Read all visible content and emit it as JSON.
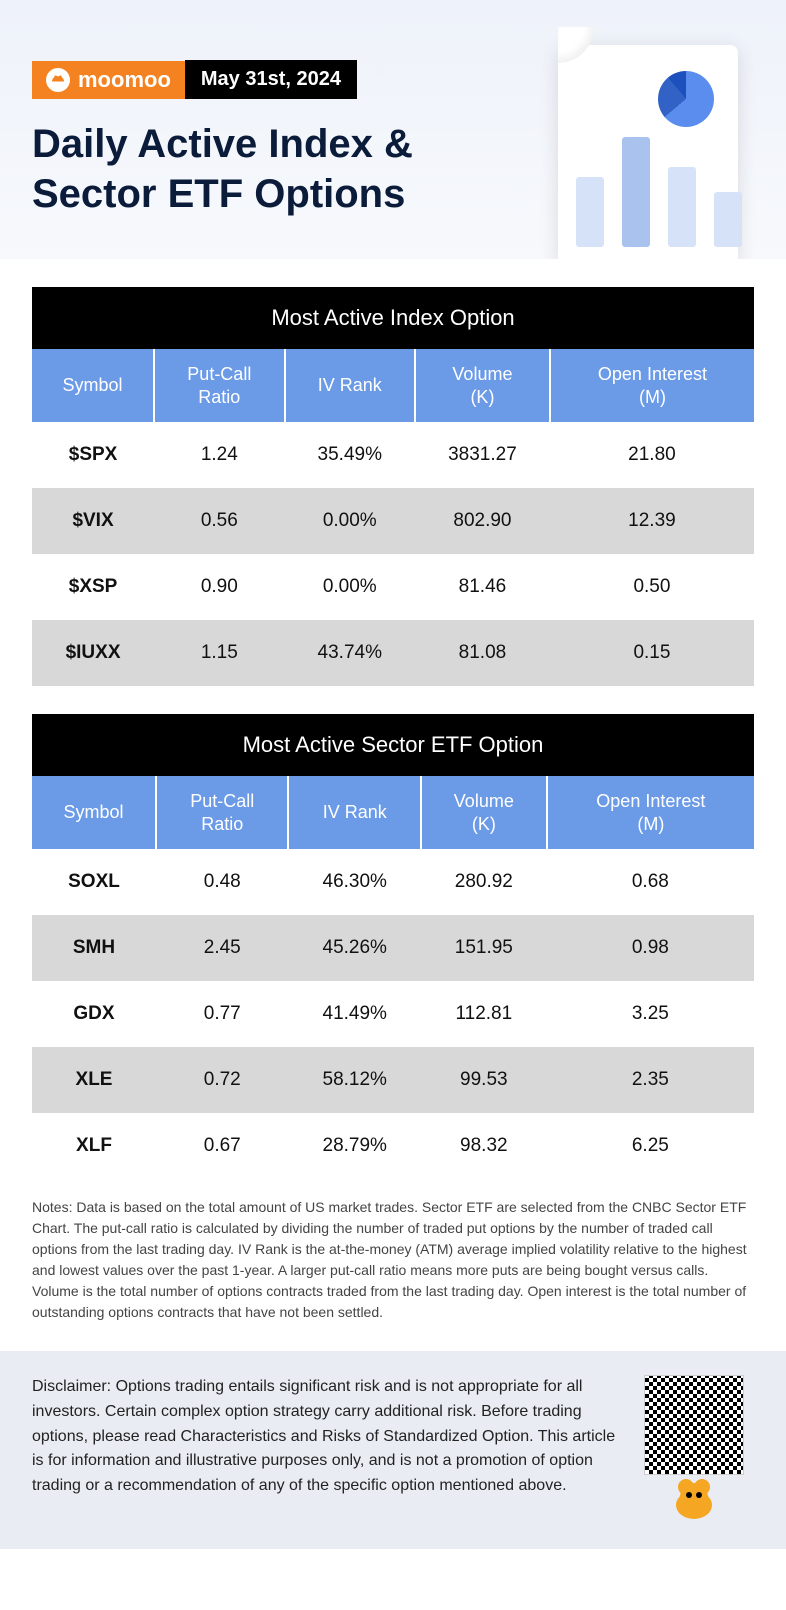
{
  "brand": {
    "name": "moomoo",
    "logo_bg": "#f58220"
  },
  "date": "May 31st, 2024",
  "title": "Daily Active Index & Sector ETF Options",
  "colors": {
    "header_bg_top": "#eef2fa",
    "header_bg_bottom": "#f7f9fc",
    "table_title_bg": "#000000",
    "table_title_fg": "#ffffff",
    "column_header_bg": "#6b9ae7",
    "column_header_fg": "#ffffff",
    "row_alt_bg": "#d8d8d8",
    "row_bg": "#ffffff",
    "disclaimer_bg": "#e9ecf2",
    "title_fg": "#0b1b3a",
    "brand_bg": "#f58220"
  },
  "typography": {
    "title_size_pt": 30,
    "table_title_size_pt": 16,
    "th_size_pt": 14,
    "td_size_pt": 14,
    "notes_size_pt": 10,
    "disclaimer_size_pt": 12
  },
  "tables": [
    {
      "title": "Most Active Index Option",
      "columns": [
        "Symbol",
        "Put-Call\nRatio",
        "IV Rank",
        "Volume\n(K)",
        "Open Interest\n(M)"
      ],
      "rows": [
        [
          "$SPX",
          "1.24",
          "35.49%",
          "3831.27",
          "21.80"
        ],
        [
          "$VIX",
          "0.56",
          "0.00%",
          "802.90",
          "12.39"
        ],
        [
          "$XSP",
          "0.90",
          "0.00%",
          "81.46",
          "0.50"
        ],
        [
          "$IUXX",
          "1.15",
          "43.74%",
          "81.08",
          "0.15"
        ]
      ]
    },
    {
      "title": "Most Active Sector ETF Option",
      "columns": [
        "Symbol",
        "Put-Call\nRatio",
        "IV Rank",
        "Volume\n(K)",
        "Open Interest\n(M)"
      ],
      "rows": [
        [
          "SOXL",
          "0.48",
          "46.30%",
          "280.92",
          "0.68"
        ],
        [
          "SMH",
          "2.45",
          "45.26%",
          "151.95",
          "0.98"
        ],
        [
          "GDX",
          "0.77",
          "41.49%",
          "112.81",
          "3.25"
        ],
        [
          "XLE",
          "0.72",
          "58.12%",
          "99.53",
          "2.35"
        ],
        [
          "XLF",
          "0.67",
          "28.79%",
          "98.32",
          "6.25"
        ]
      ]
    }
  ],
  "notes": "Notes: Data is based on the total amount of US market trades. Sector ETF are selected from the CNBC Sector ETF Chart. The put-call ratio is calculated by dividing the number of traded put options by the number of traded call options from the last trading day. IV Rank is the at-the-money (ATM) average implied volatility relative to the highest and lowest values over the past 1-year. A larger put-call ratio means more puts are being bought versus calls. Volume is the total number of options contracts traded from the last trading day. Open interest is the total number of outstanding options contracts that have not been settled.",
  "disclaimer": "Disclaimer: Options trading entails significant risk and is not appropriate for all investors. Certain complex option strategy carry additional risk. Before trading options, please read Characteristics and Risks of Standardized Option. This article is for information and illustrative purposes only, and is not a promotion of option trading or a recommendation of any of the specific option mentioned above."
}
